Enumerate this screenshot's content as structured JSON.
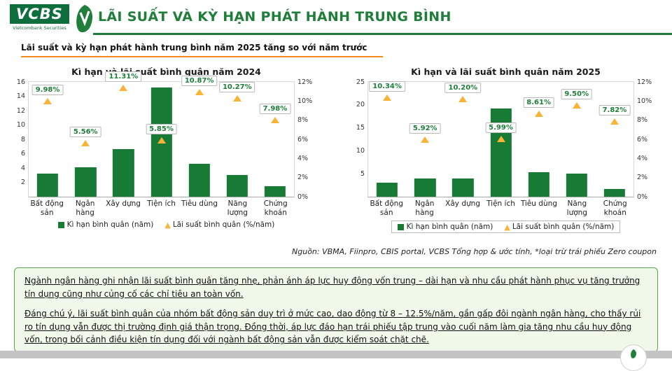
{
  "brand": {
    "logo_text": "VCBS",
    "logo_subtext": "Vietcombank Securities"
  },
  "header": {
    "title": "LÃI SUẤT VÀ KỲ HẠN PHÁT HÀNH TRUNG BÌNH"
  },
  "subtitle": "Lãi suất và kỳ hạn phát hành trung bình năm 2025 tăng so với năm trước",
  "colors": {
    "brand_green": "#1e7e3a",
    "bar_green": "#177a35",
    "marker_yellow": "#f9b438",
    "accent_orange": "#f08c1e",
    "summary_bg": "#f0f8ea",
    "summary_border": "#58a54b"
  },
  "chart_data": [
    {
      "type": "bar",
      "title": "Kì hạn và lãi suất bình quân năm 2024",
      "categories": [
        "Bất động sản",
        "Ngân hàng",
        "Xây dựng",
        "Tiện ích",
        "Tiêu dùng",
        "Năng lượng",
        "Chứng khoán"
      ],
      "series": [
        {
          "name": "Kì hạn bình quân (năm)",
          "axis": "left",
          "values": [
            3.2,
            4.1,
            6.6,
            15.2,
            4.6,
            3.0,
            1.5
          ]
        },
        {
          "name": "Lãi suất bình quân (%/năm)",
          "axis": "right",
          "values": [
            9.98,
            5.56,
            11.31,
            5.85,
            10.87,
            10.27,
            7.98
          ],
          "labels": [
            "9.98%",
            "5.56%",
            "11.31%",
            "5.85%",
            "10.87%",
            "10.27%",
            "7.98%"
          ]
        }
      ],
      "left_axis": {
        "min": 0,
        "max": 16,
        "ticks": [
          2,
          4,
          6,
          8,
          10,
          12,
          14,
          16
        ]
      },
      "right_axis": {
        "min": 0,
        "max": 12,
        "ticks": [
          "0%",
          "2%",
          "4%",
          "6%",
          "8%",
          "10%",
          "12%"
        ]
      },
      "grid": false,
      "legend_position": "bottom"
    },
    {
      "type": "bar",
      "title": "Kì hạn và lãi suất bình quân năm 2025",
      "categories": [
        "Bất động sản",
        "Ngân hàng",
        "Xây dựng",
        "Tiện ích",
        "Tiêu dùng",
        "Năng lượng",
        "Chứng khoán"
      ],
      "series": [
        {
          "name": "Kì hạn bình quân (năm)",
          "axis": "left",
          "values": [
            3.0,
            3.9,
            4.0,
            19.2,
            5.4,
            5.0,
            1.7
          ]
        },
        {
          "name": "Lãi suất bình quân (%/năm)",
          "axis": "right",
          "values": [
            10.34,
            5.92,
            10.2,
            5.99,
            8.61,
            9.5,
            7.82
          ],
          "labels": [
            "10.34%",
            "5.92%",
            "10.20%",
            "5.99%",
            "8.61%",
            "9.50%",
            "7.82%"
          ]
        }
      ],
      "left_axis": {
        "min": 0,
        "max": 25,
        "ticks": [
          5,
          10,
          15,
          20,
          25
        ]
      },
      "right_axis": {
        "min": 0,
        "max": 12,
        "ticks": [
          "0%",
          "2%",
          "4%",
          "6%",
          "8%",
          "10%",
          "12%"
        ]
      },
      "grid": false,
      "legend_position": "bottom"
    }
  ],
  "source": "Nguồn: VBMA, Fiinpro, CBIS portal, VCBS Tổng hợp & ước tính, *loại trừ trái phiếu Zero coupon",
  "summary": {
    "p1": "Ngành ngân hàng ghi nhận lãi suất bình quân tăng nhẹ, phản ánh áp lực huy động vốn trung – dài hạn và nhu cầu phát hành phục vụ tăng trưởng tín dụng cũng như củng cố các chỉ tiêu an toàn vốn.",
    "p2": "Đáng chú ý, lãi suất bình quân của nhóm bất động sản duy trì ở mức cao, dao động từ 8 – 12.5%/năm, gần gấp đôi ngành ngân hàng, cho thấy rủi ro tín dụng vẫn được thị trường định giá thận trọng. Đồng thời, áp lực đáo hạn trái phiếu tập trung vào cuối năm làm gia tăng nhu cầu huy động vốn, trong bối cảnh điều kiện tín dụng đối với ngành bất động sản vẫn được kiểm soát chặt chẽ."
  }
}
